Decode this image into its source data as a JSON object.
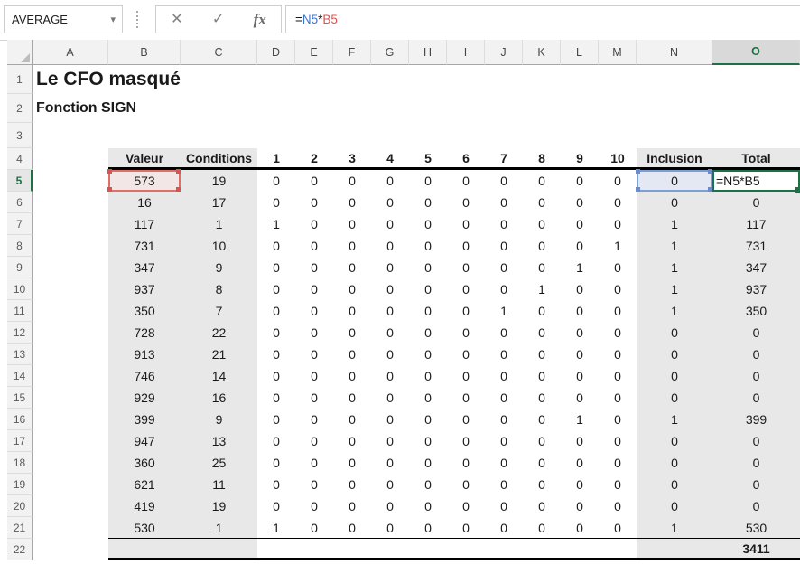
{
  "formula_bar": {
    "name_box_value": "AVERAGE",
    "dropdown_icon": "▾",
    "cancel_icon": "✕",
    "enter_icon": "✓",
    "insert_function_label": "fx",
    "formula_tokens": [
      {
        "text": "=",
        "color": "#1a1a1a"
      },
      {
        "text": "N5",
        "color": "#3e74c9"
      },
      {
        "text": "*",
        "color": "#1a1a1a"
      },
      {
        "text": "B5",
        "color": "#e0534c"
      }
    ]
  },
  "sheet": {
    "col_headers": [
      "A",
      "B",
      "C",
      "D",
      "E",
      "F",
      "G",
      "H",
      "I",
      "J",
      "K",
      "L",
      "M",
      "N",
      "O"
    ],
    "row_numbers": [
      "1",
      "2",
      "3",
      "4",
      "5",
      "6",
      "7",
      "8",
      "9",
      "10",
      "11",
      "12",
      "13",
      "14",
      "15",
      "16",
      "17",
      "18",
      "19",
      "20",
      "21",
      "22"
    ],
    "selected_col": "O",
    "selected_row": "5",
    "title_row1": "Le CFO masqué",
    "title_row2": "Fonction SIGN",
    "table": {
      "header": {
        "valeur": "Valeur",
        "conditions": "Conditions",
        "nums": [
          "1",
          "2",
          "3",
          "4",
          "5",
          "6",
          "7",
          "8",
          "9",
          "10"
        ],
        "inclusion": "Inclusion",
        "total": "Total"
      },
      "rows": [
        {
          "row": 5,
          "valeur": "573",
          "conditions": "19",
          "flags": [
            "0",
            "0",
            "0",
            "0",
            "0",
            "0",
            "0",
            "0",
            "0",
            "0"
          ],
          "inclusion": "0",
          "total": "=N5*B5"
        },
        {
          "row": 6,
          "valeur": "16",
          "conditions": "17",
          "flags": [
            "0",
            "0",
            "0",
            "0",
            "0",
            "0",
            "0",
            "0",
            "0",
            "0"
          ],
          "inclusion": "0",
          "total": "0"
        },
        {
          "row": 7,
          "valeur": "117",
          "conditions": "1",
          "flags": [
            "1",
            "0",
            "0",
            "0",
            "0",
            "0",
            "0",
            "0",
            "0",
            "0"
          ],
          "inclusion": "1",
          "total": "117"
        },
        {
          "row": 8,
          "valeur": "731",
          "conditions": "10",
          "flags": [
            "0",
            "0",
            "0",
            "0",
            "0",
            "0",
            "0",
            "0",
            "0",
            "1"
          ],
          "inclusion": "1",
          "total": "731"
        },
        {
          "row": 9,
          "valeur": "347",
          "conditions": "9",
          "flags": [
            "0",
            "0",
            "0",
            "0",
            "0",
            "0",
            "0",
            "0",
            "1",
            "0"
          ],
          "inclusion": "1",
          "total": "347"
        },
        {
          "row": 10,
          "valeur": "937",
          "conditions": "8",
          "flags": [
            "0",
            "0",
            "0",
            "0",
            "0",
            "0",
            "0",
            "1",
            "0",
            "0"
          ],
          "inclusion": "1",
          "total": "937"
        },
        {
          "row": 11,
          "valeur": "350",
          "conditions": "7",
          "flags": [
            "0",
            "0",
            "0",
            "0",
            "0",
            "0",
            "1",
            "0",
            "0",
            "0"
          ],
          "inclusion": "1",
          "total": "350"
        },
        {
          "row": 12,
          "valeur": "728",
          "conditions": "22",
          "flags": [
            "0",
            "0",
            "0",
            "0",
            "0",
            "0",
            "0",
            "0",
            "0",
            "0"
          ],
          "inclusion": "0",
          "total": "0"
        },
        {
          "row": 13,
          "valeur": "913",
          "conditions": "21",
          "flags": [
            "0",
            "0",
            "0",
            "0",
            "0",
            "0",
            "0",
            "0",
            "0",
            "0"
          ],
          "inclusion": "0",
          "total": "0"
        },
        {
          "row": 14,
          "valeur": "746",
          "conditions": "14",
          "flags": [
            "0",
            "0",
            "0",
            "0",
            "0",
            "0",
            "0",
            "0",
            "0",
            "0"
          ],
          "inclusion": "0",
          "total": "0"
        },
        {
          "row": 15,
          "valeur": "929",
          "conditions": "16",
          "flags": [
            "0",
            "0",
            "0",
            "0",
            "0",
            "0",
            "0",
            "0",
            "0",
            "0"
          ],
          "inclusion": "0",
          "total": "0"
        },
        {
          "row": 16,
          "valeur": "399",
          "conditions": "9",
          "flags": [
            "0",
            "0",
            "0",
            "0",
            "0",
            "0",
            "0",
            "0",
            "1",
            "0"
          ],
          "inclusion": "1",
          "total": "399"
        },
        {
          "row": 17,
          "valeur": "947",
          "conditions": "13",
          "flags": [
            "0",
            "0",
            "0",
            "0",
            "0",
            "0",
            "0",
            "0",
            "0",
            "0"
          ],
          "inclusion": "0",
          "total": "0"
        },
        {
          "row": 18,
          "valeur": "360",
          "conditions": "25",
          "flags": [
            "0",
            "0",
            "0",
            "0",
            "0",
            "0",
            "0",
            "0",
            "0",
            "0"
          ],
          "inclusion": "0",
          "total": "0"
        },
        {
          "row": 19,
          "valeur": "621",
          "conditions": "11",
          "flags": [
            "0",
            "0",
            "0",
            "0",
            "0",
            "0",
            "0",
            "0",
            "0",
            "0"
          ],
          "inclusion": "0",
          "total": "0"
        },
        {
          "row": 20,
          "valeur": "419",
          "conditions": "19",
          "flags": [
            "0",
            "0",
            "0",
            "0",
            "0",
            "0",
            "0",
            "0",
            "0",
            "0"
          ],
          "inclusion": "0",
          "total": "0"
        },
        {
          "row": 21,
          "valeur": "530",
          "conditions": "1",
          "flags": [
            "1",
            "0",
            "0",
            "0",
            "0",
            "0",
            "0",
            "0",
            "0",
            "0"
          ],
          "inclusion": "1",
          "total": "530"
        }
      ],
      "grand_total": "3411"
    }
  },
  "colors": {
    "accent_green": "#1e7145",
    "ref_red_border": "#df6f67",
    "ref_red_fill": "#f2e6e6",
    "ref_blue_border": "#7e9ed6",
    "ref_blue_fill": "#e4e8f2",
    "shaded_column_fill": "#e8e8e8",
    "formula_ref_blue": "#3e74c9",
    "formula_ref_red": "#e0534c"
  }
}
